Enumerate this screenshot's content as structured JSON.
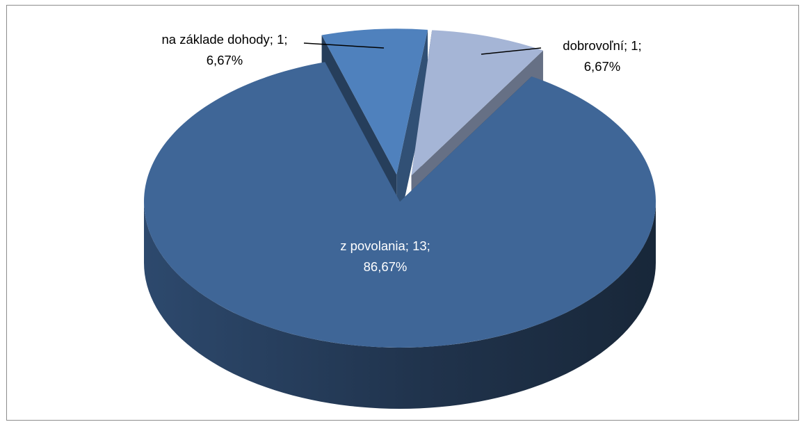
{
  "chart_data": {
    "type": "pie",
    "style": "3d-exploded",
    "title": "",
    "series": [
      {
        "values": [
          13,
          1,
          1
        ],
        "labels": [
          "z povolania; 13;",
          "na základe dohody; 1;",
          "dobrovoľní; 1;"
        ],
        "percent_labels": [
          "86,67%",
          "6,67%",
          "6,67%"
        ],
        "colors": [
          "#3f6697",
          "#4f81bd",
          "#a5b5d6"
        ]
      }
    ],
    "categories": [
      "z povolania",
      "na základe dohody",
      "dobrovoľní"
    ],
    "legend": "none",
    "data_labels": "category; value; percent"
  }
}
